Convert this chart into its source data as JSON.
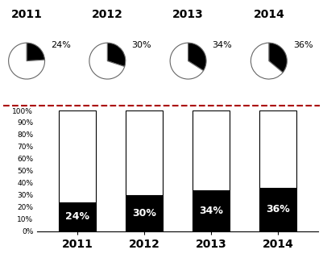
{
  "years": [
    "2011",
    "2012",
    "2013",
    "2014"
  ],
  "black_pct": [
    24,
    30,
    34,
    36
  ],
  "white_pct": [
    76,
    70,
    66,
    64
  ],
  "pie_labels": [
    "24%",
    "30%",
    "34%",
    "36%"
  ],
  "bar_labels": [
    "24%",
    "30%",
    "34%",
    "36%"
  ],
  "black_color": "#000000",
  "white_color": "#ffffff",
  "bar_edge_color": "#000000",
  "pie_edge_color": "#666666",
  "dashed_line_color": "#aa0000",
  "ytick_labels": [
    "0%",
    "10%",
    "20%",
    "30%",
    "40%",
    "50%",
    "60%",
    "70%",
    "80%",
    "90%",
    "100%"
  ],
  "ytick_values": [
    0,
    10,
    20,
    30,
    40,
    50,
    60,
    70,
    80,
    90,
    100
  ],
  "bar_label_fontsize": 9,
  "pie_pct_fontsize": 8,
  "year_title_fontsize": 10
}
